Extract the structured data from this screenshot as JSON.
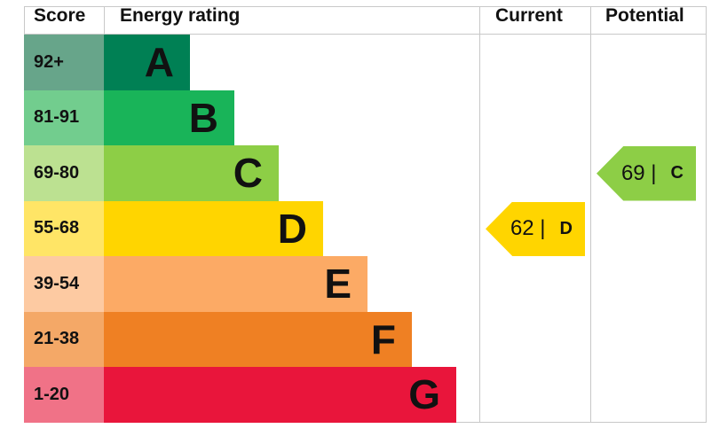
{
  "headers": {
    "score": "Score",
    "rating": "Energy rating",
    "current": "Current",
    "potential": "Potential"
  },
  "chart_data": {
    "type": "bar",
    "categories": [
      "A",
      "B",
      "C",
      "D",
      "E",
      "F",
      "G"
    ],
    "bands": [
      {
        "letter": "A",
        "range": "92+",
        "color": "#008054",
        "score_color": "#67a58a"
      },
      {
        "letter": "B",
        "range": "81-91",
        "color": "#19b459",
        "score_color": "#72cd8e"
      },
      {
        "letter": "C",
        "range": "69-80",
        "color": "#8dce46",
        "score_color": "#bce191"
      },
      {
        "letter": "D",
        "range": "55-68",
        "color": "#ffd500",
        "score_color": "#ffe566"
      },
      {
        "letter": "E",
        "range": "39-54",
        "color": "#fcaa65",
        "score_color": "#fdcaa2"
      },
      {
        "letter": "F",
        "range": "21-38",
        "color": "#ef8023",
        "score_color": "#f4a867"
      },
      {
        "letter": "G",
        "range": "1-20",
        "color": "#e9153b",
        "score_color": "#f07287"
      }
    ],
    "current": {
      "value": 62,
      "band": "D",
      "color": "#ffd500",
      "label": "62 |"
    },
    "potential": {
      "value": 69,
      "band": "C",
      "color": "#8dce46",
      "label": "69 |"
    }
  }
}
